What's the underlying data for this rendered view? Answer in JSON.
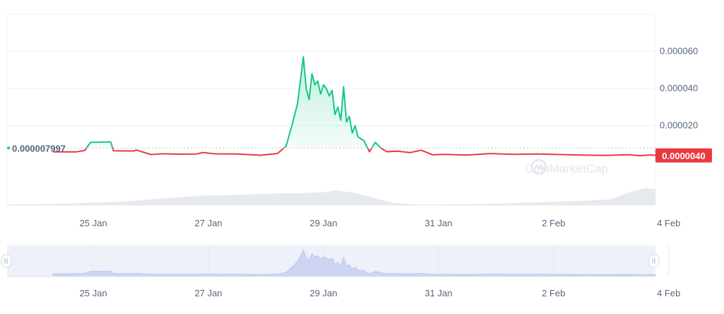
{
  "colors": {
    "up": "#16c784",
    "down": "#ea3943",
    "up_fill": "#16c784",
    "grid": "#eff2f5",
    "axis_text": "#58667e",
    "volume": "#e6e9ef",
    "navigator_bg": "#eef1fa",
    "navigator_series": "#c8d0f0",
    "badge_bg": "#ea3943",
    "badge_text": "#ffffff",
    "reference_line": "#c7c7c7"
  },
  "watermark": "CoinMarketCap",
  "chart_data": {
    "type": "line",
    "title": "",
    "xlabel": "",
    "ylabel": "",
    "x_ticks": [
      "25 Jan",
      "27 Jan",
      "29 Jan",
      "31 Jan",
      "2 Feb",
      "4 Feb"
    ],
    "y_ticks": [
      "0.000020",
      "0.000040",
      "0.000060"
    ],
    "y_tick_values": [
      2e-05,
      4e-05,
      6e-05
    ],
    "ylim": [
      -2.27e-05,
      8e-05
    ],
    "xlim": [
      "23 Jan 12:00",
      "4 Feb 18:00"
    ],
    "reference_value": 7.997e-06,
    "reference_label": "0.000007997",
    "current_value": 4e-06,
    "current_label": "0.0000040",
    "grid": true,
    "price_series": {
      "x_days": [
        24.3,
        24.7,
        24.85,
        24.95,
        25.3,
        25.35,
        25.7,
        25.75,
        26.0,
        26.2,
        26.5,
        26.8,
        26.9,
        27.1,
        27.5,
        27.9,
        28.2,
        28.35,
        28.45,
        28.55,
        28.65,
        28.7,
        28.75,
        28.8,
        28.85,
        28.9,
        28.95,
        29.0,
        29.05,
        29.1,
        29.15,
        29.2,
        29.25,
        29.3,
        29.35,
        29.4,
        29.45,
        29.5,
        29.55,
        29.6,
        29.7,
        29.8,
        29.9,
        30.0,
        30.1,
        30.3,
        30.5,
        30.7,
        30.9,
        31.1,
        31.5,
        31.9,
        32.3,
        32.7,
        33.1,
        33.5,
        33.9,
        34.3,
        34.5,
        34.7,
        34.77
      ],
      "values": [
        5.9e-06,
        5.9e-06,
        6.7e-06,
        1.1e-05,
        1.13e-05,
        6.5e-06,
        6.4e-06,
        6.9e-06,
        4.5e-06,
        4.9e-06,
        4.7e-06,
        4.8e-06,
        5.6e-06,
        4.9e-06,
        4.8e-06,
        4.1e-06,
        5e-06,
        9e-06,
        2e-05,
        3.2e-05,
        5.7e-05,
        4e-05,
        3.4e-05,
        4.8e-05,
        4.2e-05,
        4.4e-05,
        3.7e-05,
        4.2e-05,
        4e-05,
        3.6e-05,
        3.9e-05,
        2.6e-05,
        3e-05,
        2.3e-05,
        4.1e-05,
        2.2e-05,
        2.5e-05,
        1.6e-05,
        2e-05,
        1.4e-05,
        1.2e-05,
        6e-06,
        1.1e-05,
        8e-06,
        6e-06,
        6.3e-06,
        5.5e-06,
        6.8e-06,
        4.3e-06,
        4.6e-06,
        4.2e-06,
        5e-06,
        4.6e-06,
        4.8e-06,
        4.5e-06,
        4.2e-06,
        4e-06,
        4.4e-06,
        3.9e-06,
        4.3e-06,
        4e-06
      ]
    },
    "volume_series": {
      "x_days": [
        23.5,
        24.5,
        25.5,
        26.0,
        26.5,
        27.0,
        27.5,
        28.0,
        28.5,
        29.0,
        29.2,
        29.5,
        29.8,
        30.2,
        30.6,
        31.0,
        31.5,
        32.0,
        32.5,
        33.0,
        33.5,
        34.0,
        34.3,
        34.6,
        34.77
      ],
      "values": [
        0.02,
        0.05,
        0.12,
        0.2,
        0.28,
        0.34,
        0.36,
        0.4,
        0.42,
        0.45,
        0.52,
        0.45,
        0.3,
        0.08,
        0.02,
        0.02,
        0.03,
        0.05,
        0.08,
        0.12,
        0.15,
        0.2,
        0.45,
        0.6,
        0.55
      ]
    }
  }
}
